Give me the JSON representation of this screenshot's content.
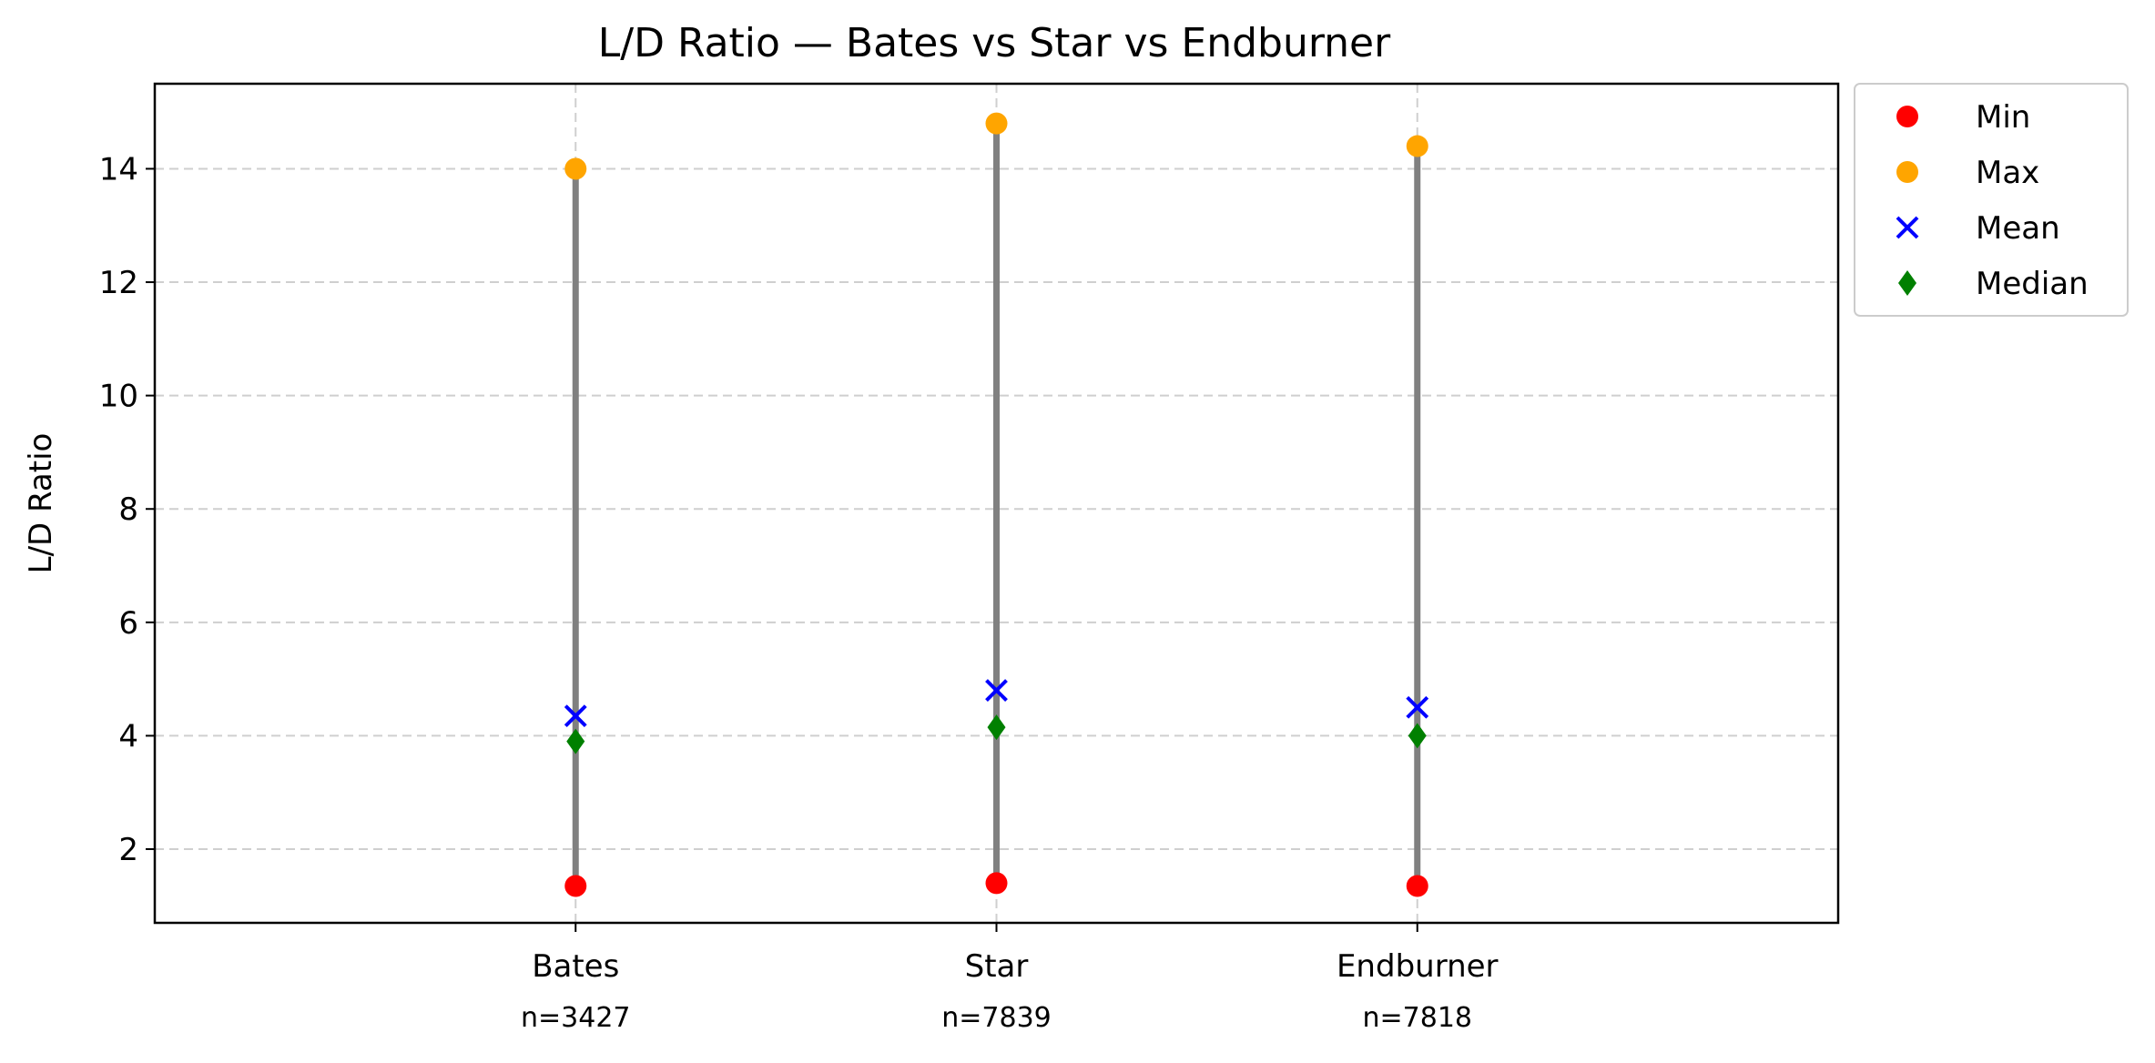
{
  "chart_data": {
    "type": "scatter",
    "title": "L/D Ratio — Bates vs Star vs Endburner",
    "xlabel": "",
    "ylabel": "L/D Ratio",
    "categories": [
      "Bates",
      "Star",
      "Endburner"
    ],
    "sample_counts": [
      "n=3427",
      "n=7839",
      "n=7818"
    ],
    "ylim": [
      0.7,
      15.5
    ],
    "yticks": [
      2,
      4,
      6,
      8,
      10,
      12,
      14
    ],
    "grid": true,
    "legend_position": "outside-top-right",
    "range_line_color": "#808080",
    "series": [
      {
        "name": "Min",
        "marker": "circle",
        "color": "#ff0000",
        "values": [
          1.35,
          1.4,
          1.35
        ]
      },
      {
        "name": "Max",
        "marker": "circle",
        "color": "#ffa500",
        "values": [
          14.0,
          14.8,
          14.4
        ]
      },
      {
        "name": "Mean",
        "marker": "x",
        "color": "#0000ff",
        "values": [
          4.35,
          4.8,
          4.5
        ]
      },
      {
        "name": "Median",
        "marker": "diamond",
        "color": "#008000",
        "values": [
          3.9,
          4.15,
          4.0
        ]
      }
    ]
  }
}
